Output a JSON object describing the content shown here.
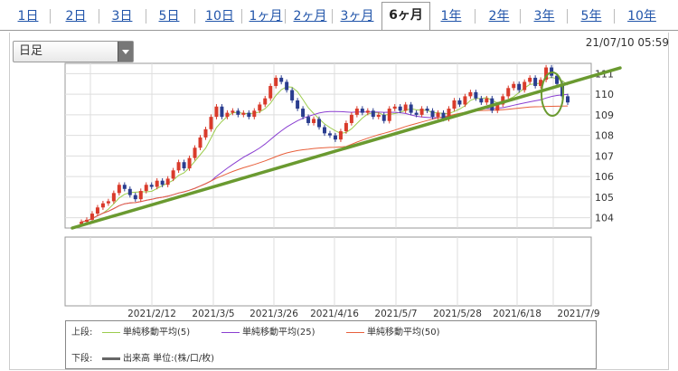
{
  "tabs": [
    {
      "label": "1日",
      "active": false
    },
    {
      "label": "2日",
      "active": false
    },
    {
      "label": "3日",
      "active": false
    },
    {
      "label": "5日",
      "active": false
    },
    {
      "label": "10日",
      "active": false
    },
    {
      "label": "1ヶ月",
      "active": false
    },
    {
      "label": "2ヶ月",
      "active": false
    },
    {
      "label": "3ヶ月",
      "active": false
    },
    {
      "label": "6ヶ月",
      "active": true
    },
    {
      "label": "1年",
      "active": false
    },
    {
      "label": "2年",
      "active": false
    },
    {
      "label": "3年",
      "active": false
    },
    {
      "label": "5年",
      "active": false
    },
    {
      "label": "10年",
      "active": false
    }
  ],
  "period_select": {
    "value": "日足"
  },
  "timestamp": "21/07/10 05:59",
  "colors": {
    "up": "#d93b2b",
    "down": "#2a3d8f",
    "ma5": "#9ccc4d",
    "ma25": "#8a3fd1",
    "ma50": "#e8603c",
    "trend": "#6a9a30",
    "volume": "#666666"
  },
  "chart_data": {
    "type": "candlestick",
    "x_ticks": [
      "2021/2/12",
      "2021/3/5",
      "2021/3/26",
      "2021/4/16",
      "2021/5/7",
      "2021/5/28",
      "2021/6/18",
      "2021/7/9"
    ],
    "y_ticks": [
      "111",
      "110",
      "109",
      "108",
      "107",
      "106",
      "105",
      "104"
    ],
    "ylim": [
      103.5,
      111.5
    ],
    "close": [
      103.8,
      103.9,
      104.2,
      104.5,
      104.7,
      104.8,
      105.2,
      105.6,
      105.4,
      105.1,
      104.9,
      105.3,
      105.6,
      105.5,
      105.8,
      105.6,
      105.9,
      106.3,
      106.7,
      106.4,
      106.9,
      107.4,
      107.9,
      108.3,
      108.9,
      109.4,
      108.9,
      109.1,
      109.2,
      109.0,
      109.1,
      108.9,
      109.2,
      109.5,
      109.8,
      110.4,
      110.8,
      110.6,
      110.2,
      109.7,
      109.3,
      108.9,
      108.6,
      108.8,
      108.4,
      108.1,
      108.0,
      107.8,
      108.2,
      108.6,
      109.0,
      109.3,
      109.1,
      109.2,
      108.9,
      109.0,
      108.7,
      109.3,
      109.4,
      109.2,
      109.5,
      109.1,
      109.0,
      109.3,
      109.2,
      108.9,
      109.1,
      108.8,
      109.3,
      109.7,
      109.5,
      109.9,
      110.1,
      109.8,
      109.6,
      109.8,
      109.2,
      109.5,
      109.9,
      110.3,
      110.5,
      110.2,
      110.6,
      110.8,
      110.4,
      110.7,
      111.3,
      110.9,
      110.5,
      109.9,
      109.6
    ],
    "ma_series": [
      {
        "name": "単純移動平均(5)",
        "period": 5
      },
      {
        "name": "単純移動平均(25)",
        "period": 25
      },
      {
        "name": "単純移動平均(50)",
        "period": 50
      }
    ],
    "trendline": {
      "from": [
        0,
        103.5
      ],
      "to": [
        90,
        111.1
      ]
    }
  },
  "legend": {
    "upper_label": "上段:",
    "lower_label": "下段:",
    "ma5": "単純移動平均(5)",
    "ma25": "単純移動平均(25)",
    "ma50": "単純移動平均(50)",
    "volume": "出来高 単位:(株/口/枚)"
  }
}
